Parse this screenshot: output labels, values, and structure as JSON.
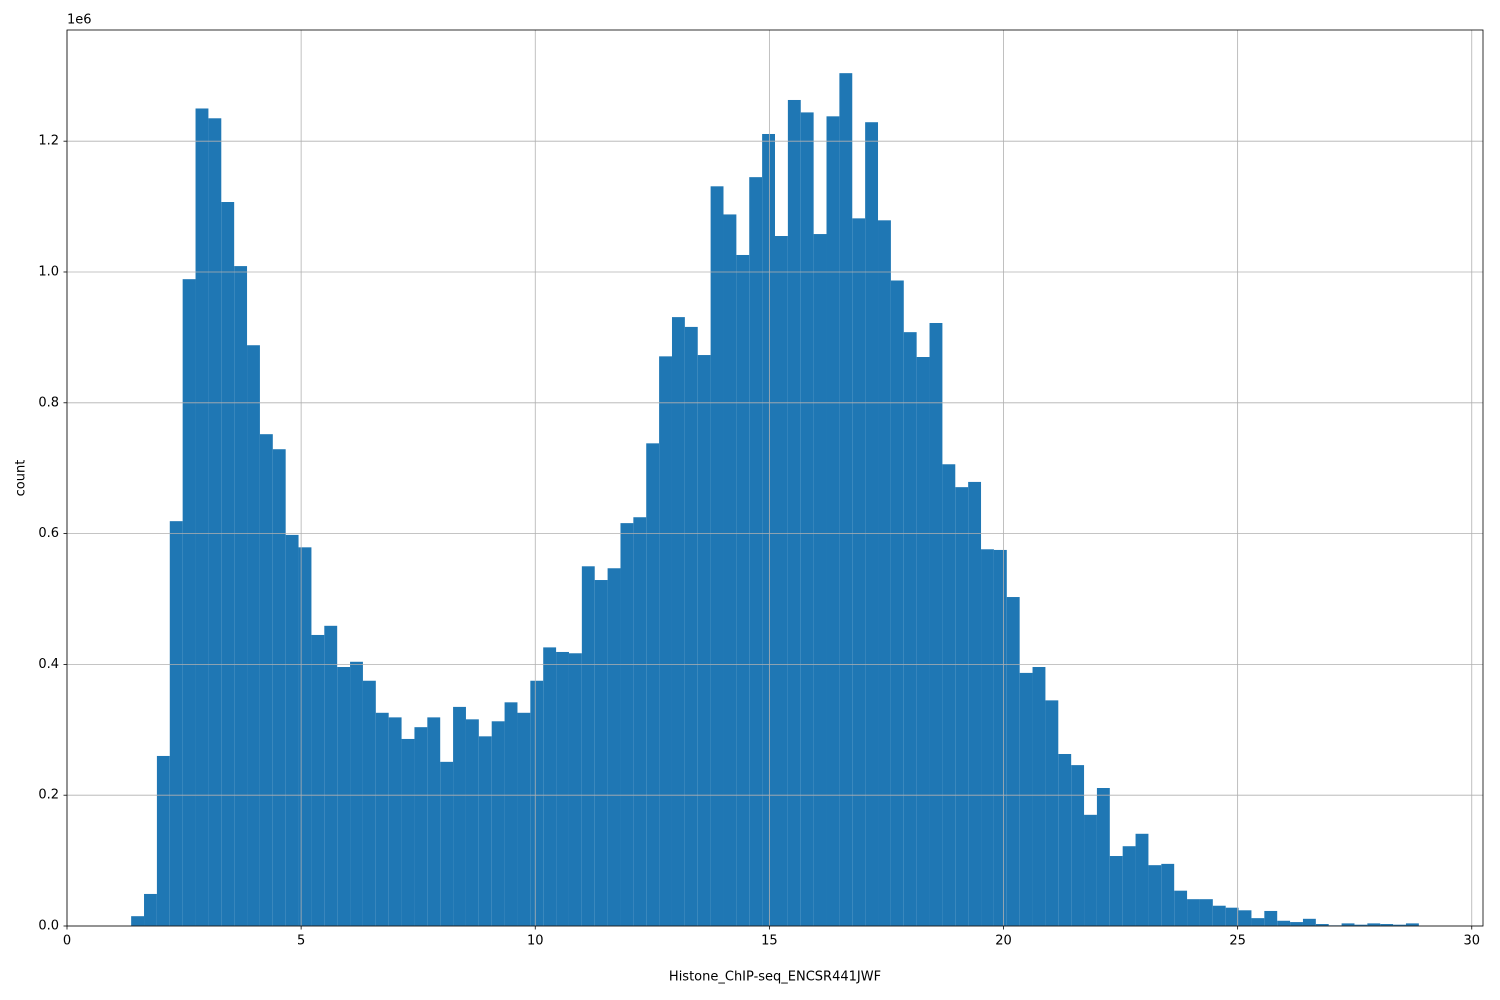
{
  "chart_data": {
    "type": "histogram",
    "xlabel": "Histone_ChIP-seq_ENCSR441JWF",
    "ylabel": "count",
    "y_offset_label": "1e6",
    "color": "#1f77b4",
    "grid": true,
    "xlim": [
      0,
      30.24
    ],
    "ylim": [
      0,
      1370000
    ],
    "xticks": [
      0,
      5,
      10,
      15,
      20,
      25,
      30
    ],
    "yticks": [
      {
        "value": 0,
        "label": "0.0"
      },
      {
        "value": 200000,
        "label": "0.2"
      },
      {
        "value": 400000,
        "label": "0.4"
      },
      {
        "value": 600000,
        "label": "0.6"
      },
      {
        "value": 800000,
        "label": "0.8"
      },
      {
        "value": 1000000,
        "label": "1.0"
      },
      {
        "value": 1200000,
        "label": "1.2"
      }
    ],
    "bins": [
      1.37,
      1.645,
      1.92,
      2.195,
      2.47,
      2.745,
      3.02,
      3.295,
      3.57,
      3.845,
      4.12,
      4.395,
      4.67,
      4.945,
      5.22,
      5.495,
      5.77,
      6.045,
      6.32,
      6.595,
      6.87,
      7.145,
      7.42,
      7.695,
      7.97,
      8.245,
      8.52,
      8.795,
      9.07,
      9.345,
      9.62,
      9.895,
      10.17,
      10.445,
      10.72,
      10.995,
      11.27,
      11.545,
      11.82,
      12.095,
      12.37,
      12.645,
      12.92,
      13.195,
      13.47,
      13.745,
      14.02,
      14.295,
      14.57,
      14.845,
      15.12,
      15.395,
      15.67,
      15.945,
      16.22,
      16.495,
      16.77,
      17.045,
      17.32,
      17.595,
      17.87,
      18.145,
      18.42,
      18.695,
      18.97,
      19.245,
      19.52,
      19.795,
      20.07,
      20.345,
      20.62,
      20.895,
      21.17,
      21.445,
      21.72,
      21.995,
      22.27,
      22.545,
      22.82,
      23.095,
      23.37,
      23.645,
      23.92,
      24.195,
      24.47,
      24.745,
      25.02,
      25.295,
      25.57,
      25.845,
      26.12,
      26.395,
      26.67,
      26.945,
      27.22,
      27.495,
      27.77,
      28.045,
      28.32,
      28.595,
      28.87
    ],
    "counts": [
      15000,
      49000,
      260000,
      619000,
      989000,
      1250000,
      1235000,
      1107000,
      1009000,
      888000,
      752000,
      729000,
      598000,
      579000,
      445000,
      459000,
      396000,
      404000,
      375000,
      326000,
      319000,
      286000,
      304000,
      319000,
      251000,
      335000,
      316000,
      290000,
      313000,
      342000,
      326000,
      375000,
      426000,
      419000,
      417000,
      550000,
      529000,
      547000,
      616000,
      625000,
      738000,
      871000,
      931000,
      916000,
      873000,
      1131000,
      1088000,
      1026000,
      1145000,
      1211000,
      1055000,
      1263000,
      1244000,
      1058000,
      1238000,
      1304000,
      1082000,
      1229000,
      1079000,
      987000,
      908000,
      870000,
      922000,
      706000,
      671000,
      679000,
      576000,
      575000,
      503000,
      387000,
      396000,
      345000,
      263000,
      246000,
      170000,
      211000,
      107000,
      122000,
      141000,
      93000,
      95000,
      54000,
      41000,
      41000,
      31000,
      28000,
      24000,
      12000,
      23000,
      8000,
      6000,
      11000,
      3000,
      1000,
      4000,
      2000,
      4000,
      3000,
      2000,
      4000
    ]
  }
}
